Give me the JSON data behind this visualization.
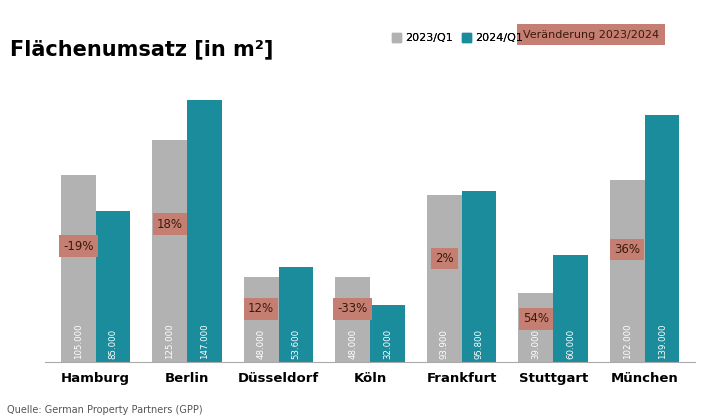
{
  "title": "Flächenumsatz [in m²]",
  "categories": [
    "Hamburg",
    "Berlin",
    "Düsseldorf",
    "Köln",
    "Frankfurt",
    "Stuttgart",
    "München"
  ],
  "values_2023": [
    105000,
    125000,
    48000,
    48000,
    93900,
    39000,
    102000
  ],
  "values_2024": [
    85000,
    147000,
    53600,
    32000,
    95800,
    60000,
    139000
  ],
  "changes": [
    "-19%",
    "18%",
    "12%",
    "-33%",
    "2%",
    "54%",
    "36%"
  ],
  "labels_2023": [
    "105.000",
    "125.000",
    "48.000",
    "48.000",
    "93.900",
    "39.000",
    "102.000"
  ],
  "labels_2024": [
    "85.000",
    "147.000",
    "53.600",
    "32.000",
    "95.800",
    "60.000",
    "139.000"
  ],
  "color_2023": "#b2b2b2",
  "color_2024": "#1a8c9c",
  "change_box_color": "#c47f72",
  "change_text_color": "#3a1a0a",
  "legend_label_2023": "2023/Q1",
  "legend_label_2024": "2024/Q1",
  "legend_label_change": "Veränderung 2023/2024",
  "source_text": "Quelle: German Property Partners (GPP)",
  "bar_width": 0.38,
  "ylim": [
    0,
    168000
  ],
  "background_color": "#ffffff",
  "title_fontsize": 15,
  "axis_fontsize": 10
}
